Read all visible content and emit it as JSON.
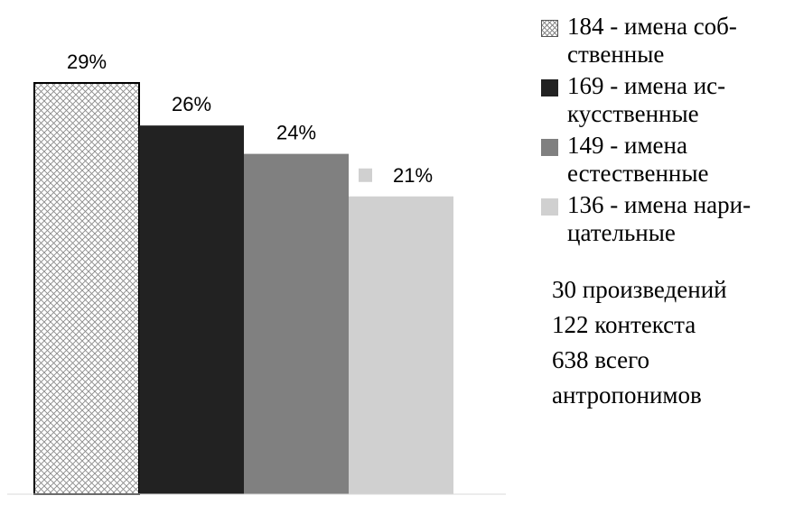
{
  "chart_data": {
    "type": "bar",
    "categories": [
      "184 - имена собственные",
      "169 - имена искусственные",
      "149 - имена естественные",
      "136 - имена нарицательные"
    ],
    "values": [
      29,
      26,
      24,
      21
    ],
    "value_labels": [
      "29%",
      "26%",
      "24%",
      "21%"
    ],
    "colors": [
      "hatched",
      "#222222",
      "#808080",
      "#d0d0d0"
    ],
    "ylim": [
      0,
      29
    ],
    "grid": false,
    "legend_position": "right"
  },
  "legend": {
    "items": [
      {
        "text": "184 - имена соб-ственные",
        "swatch": "hatched"
      },
      {
        "text": "169 - имена ис-кусственные",
        "swatch": "#222222"
      },
      {
        "text": "149 - имена естественные",
        "swatch": "#808080"
      },
      {
        "text": "136 - имена нари-цательные",
        "swatch": "#d0d0d0"
      }
    ]
  },
  "stats": {
    "line1": "30 произведений",
    "line2": "122 контекста",
    "line3": "638 всего",
    "line4": "антропонимов"
  }
}
